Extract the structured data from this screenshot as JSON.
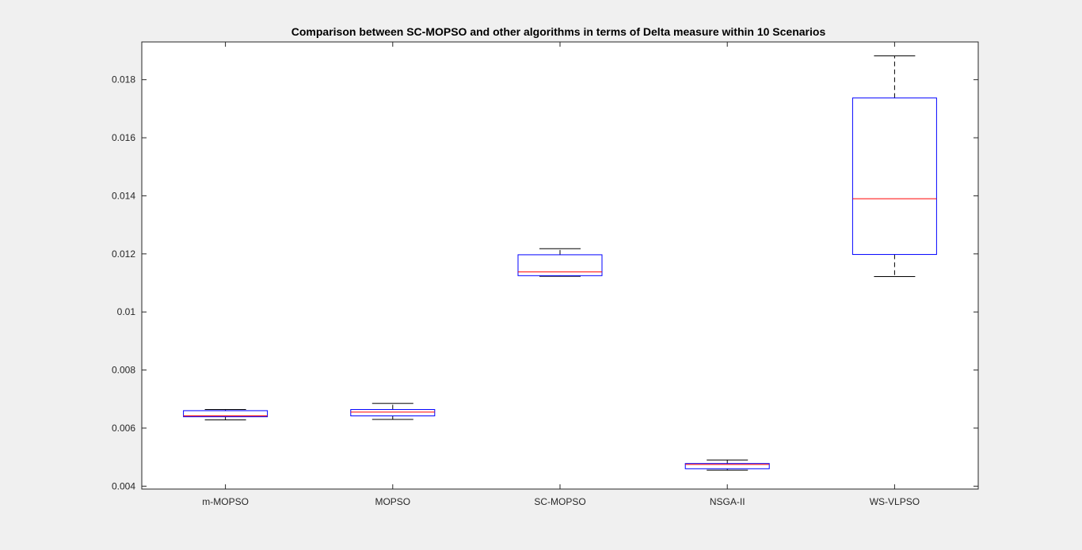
{
  "chart_data": {
    "type": "box",
    "title": "Comparison between SC-MOPSO and other algorithms in terms of Delta measure within 10 Scenarios",
    "xlabel": "",
    "ylabel": "",
    "ylim": [
      0.0039,
      0.0193
    ],
    "yticks": [
      0.004,
      0.006,
      0.008,
      0.01,
      0.012,
      0.014,
      0.016,
      0.018
    ],
    "ytick_labels": [
      "0.004",
      "0.006",
      "0.008",
      "0.01",
      "0.012",
      "0.014",
      "0.016",
      "0.018"
    ],
    "grid": false,
    "categories": [
      "m-MOPSO",
      "MOPSO",
      "SC-MOPSO",
      "NSGA-II",
      "WS-VLPSO"
    ],
    "boxes": [
      {
        "name": "m-MOPSO",
        "whisker_low": 0.00628,
        "q1": 0.00639,
        "median": 0.00642,
        "q3": 0.0066,
        "whisker_high": 0.00664
      },
      {
        "name": "MOPSO",
        "whisker_low": 0.0063,
        "q1": 0.00642,
        "median": 0.00655,
        "q3": 0.00664,
        "whisker_high": 0.00685
      },
      {
        "name": "SC-MOPSO",
        "whisker_low": 0.01123,
        "q1": 0.01125,
        "median": 0.01138,
        "q3": 0.01197,
        "whisker_high": 0.01218
      },
      {
        "name": "NSGA-II",
        "whisker_low": 0.00455,
        "q1": 0.0046,
        "median": 0.00475,
        "q3": 0.00478,
        "whisker_high": 0.0049
      },
      {
        "name": "WS-VLPSO",
        "whisker_low": 0.01122,
        "q1": 0.01198,
        "median": 0.0139,
        "q3": 0.01737,
        "whisker_high": 0.01882
      }
    ],
    "colors": {
      "box": "#0000ff",
      "median": "#ff0000",
      "whisker": "#000000",
      "axes": "#262626",
      "plot_bg": "#ffffff",
      "figure_bg": "#f0f0f0"
    }
  }
}
